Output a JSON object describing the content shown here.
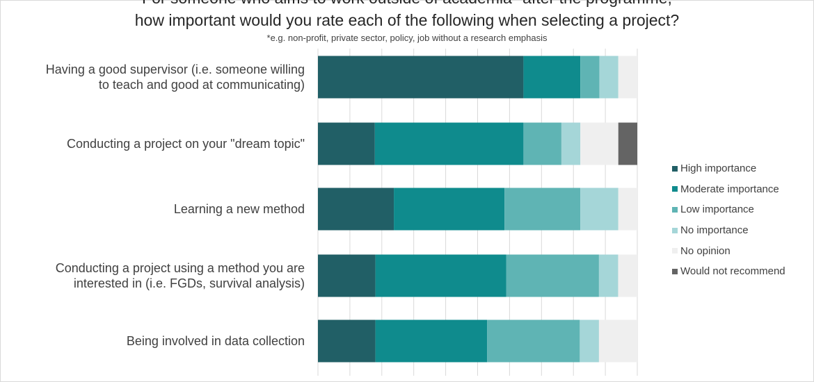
{
  "chart_data": {
    "type": "bar",
    "orientation": "horizontal",
    "stacked": true,
    "percent_stacked": true,
    "title_lines": [
      "For someone who aims to work outside of academia* after the programme,",
      "how important would you rate each of the following when selecting a project?"
    ],
    "subtitle": "*e.g. non-profit, private sector, policy, job without a research emphasis",
    "categories": [
      [
        "Having a good supervisor (i.e. someone willing",
        "to teach and good at communicating)"
      ],
      [
        "Conducting a project on your \"dream topic\""
      ],
      [
        "Learning a new method"
      ],
      [
        "Conducting a project using a method you are",
        "interested in (i.e. FGDs, survival analysis)"
      ],
      [
        "Being involved in data collection"
      ]
    ],
    "series": [
      {
        "name": "High importance",
        "color": "#215f66",
        "values": [
          65,
          18,
          24,
          18,
          18
        ]
      },
      {
        "name": "Moderate importance",
        "color": "#0f8b8d",
        "values": [
          18,
          47,
          35,
          41,
          35
        ]
      },
      {
        "name": "Low importance",
        "color": "#5fb4b4",
        "values": [
          6,
          12,
          24,
          29,
          29
        ]
      },
      {
        "name": "No importance",
        "color": "#a5d6d8",
        "values": [
          6,
          6,
          12,
          6,
          6
        ]
      },
      {
        "name": "No opinion",
        "color": "#efefef",
        "values": [
          6,
          12,
          6,
          6,
          12
        ]
      },
      {
        "name": "Would not recommend",
        "color": "#646464",
        "values": [
          0,
          6,
          0,
          0,
          0
        ]
      }
    ],
    "xlim": [
      0,
      100
    ],
    "grid": "vertical",
    "legend": "right"
  }
}
